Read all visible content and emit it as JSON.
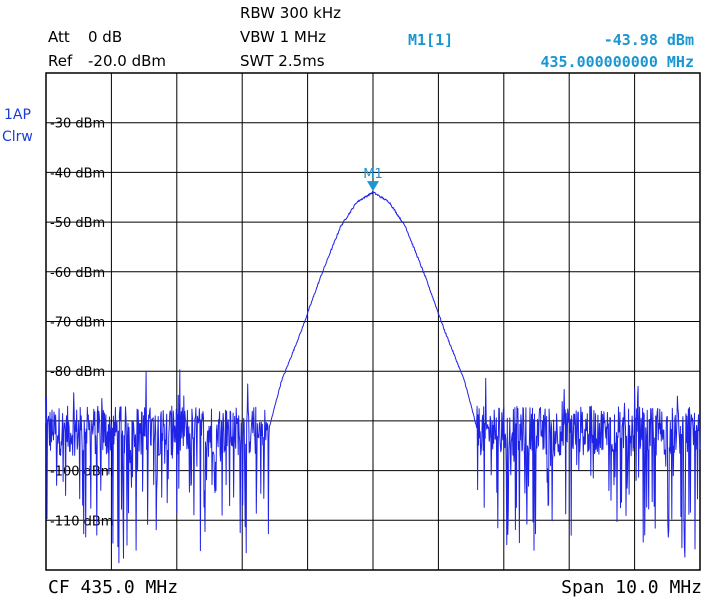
{
  "header": {
    "att_label": "Att",
    "att_value": "0 dB",
    "ref_label": "Ref",
    "ref_value": "-20.0 dBm",
    "rbw": "RBW 300 kHz",
    "vbw": "VBW 1 MHz",
    "swt": "SWT 2.5ms"
  },
  "marker": {
    "name": "M1[1]",
    "level": "-43.98 dBm",
    "freq": "435.000000000 MHz",
    "tag": "M1"
  },
  "trace": {
    "label_line1": "1AP",
    "label_line2": "Clrw"
  },
  "footer": {
    "cf": "CF 435.0 MHz",
    "span": "Span 10.0 MHz"
  },
  "colors": {
    "trace": "#1f23e6",
    "marker": "#1a96d2",
    "grid": "#000000"
  },
  "chart_data": {
    "type": "line",
    "x_unit": "MHz",
    "y_unit": "dBm",
    "xlim": [
      430.0,
      440.0
    ],
    "ylim": [
      -120,
      -20
    ],
    "grid": true,
    "y_ticks": [
      {
        "value": -30,
        "label": "-30 dBm"
      },
      {
        "value": -40,
        "label": "-40 dBm"
      },
      {
        "value": -50,
        "label": "-50 dBm"
      },
      {
        "value": -60,
        "label": "-60 dBm"
      },
      {
        "value": -70,
        "label": "-70 dBm"
      },
      {
        "value": -80,
        "label": "-80 dBm"
      },
      {
        "value": -100,
        "label": "-100 dBm"
      },
      {
        "value": -110,
        "label": "-110 dBm"
      }
    ],
    "peak": {
      "x": 435.0,
      "y": -43.98
    },
    "noise_floor_dbm": -92,
    "series": [
      {
        "x": [
          430.0,
          433.4,
          433.6,
          433.9,
          434.2,
          434.5,
          434.75,
          435.0,
          435.25,
          435.5,
          435.8,
          436.1,
          436.4,
          436.6,
          440.0
        ],
        "y": [
          -92,
          -92,
          -82,
          -72,
          -61,
          -51,
          -46,
          -43.98,
          -46,
          -51,
          -61,
          -72,
          -82,
          -92,
          -92
        ]
      }
    ]
  }
}
